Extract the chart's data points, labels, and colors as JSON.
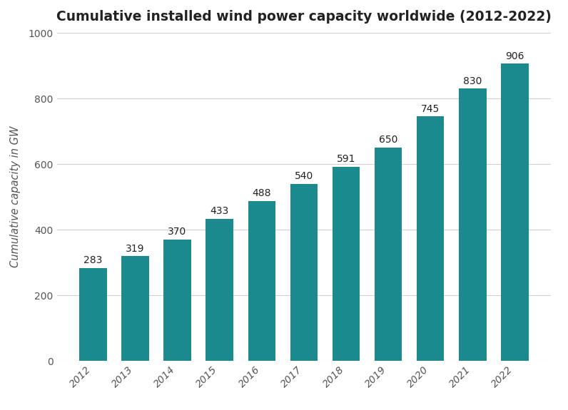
{
  "years": [
    "2012",
    "2013",
    "2014",
    "2015",
    "2016",
    "2017",
    "2018",
    "2019",
    "2020",
    "2021",
    "2022"
  ],
  "values": [
    283,
    319,
    370,
    433,
    488,
    540,
    591,
    650,
    745,
    830,
    906
  ],
  "bar_color": "#1a8a8f",
  "background_color": "#ffffff",
  "title": "Cumulative installed wind power capacity worldwide (2012-2022)",
  "ylabel": "Cumulative capacity in GW",
  "ylim": [
    0,
    1000
  ],
  "yticks": [
    0,
    200,
    400,
    600,
    800,
    1000
  ],
  "title_fontsize": 13.5,
  "label_fontsize": 10.5,
  "tick_fontsize": 10,
  "annotation_fontsize": 10,
  "grid_color": "#d0d0d0",
  "text_color": "#222222",
  "tick_label_color": "#555555"
}
